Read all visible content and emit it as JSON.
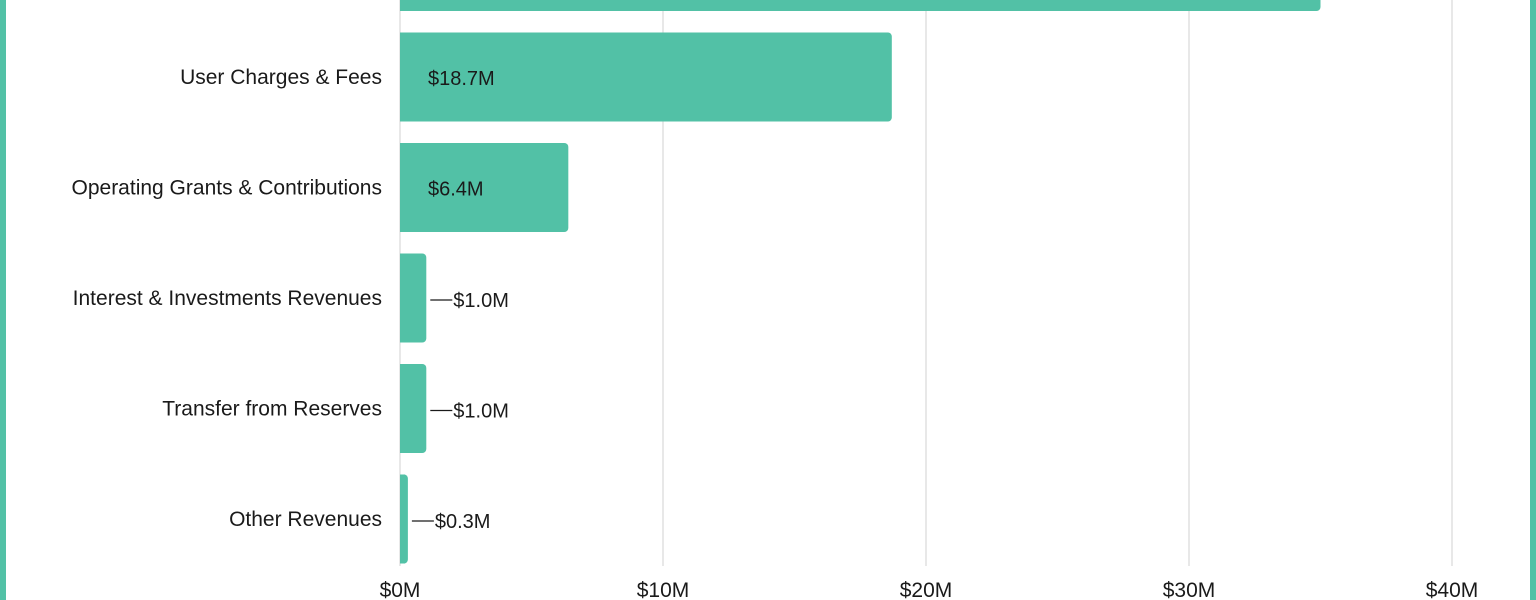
{
  "chart_data": {
    "type": "bar",
    "orientation": "horizontal",
    "categories": [
      "",
      "User Charges & Fees",
      "Operating Grants & Contributions",
      "Interest & Investments Revenues",
      "Transfer from Reserves",
      "Other Revenues"
    ],
    "values": [
      35.0,
      18.7,
      6.4,
      1.0,
      1.0,
      0.3
    ],
    "data_labels": [
      "",
      "$18.7M",
      "$6.4M",
      "$1.0M",
      "$1.0M",
      "$0.3M"
    ],
    "x_ticks": [
      "$0M",
      "$10M",
      "$20M",
      "$30M",
      "$40M"
    ],
    "x_tick_values": [
      0,
      10,
      20,
      30,
      40
    ],
    "xlim": [
      0,
      43
    ],
    "grid": true,
    "legend": "none",
    "bar_color": "#52c1a6",
    "grid_color": "#d9d9d9",
    "text_color": "#1a1a1a"
  }
}
